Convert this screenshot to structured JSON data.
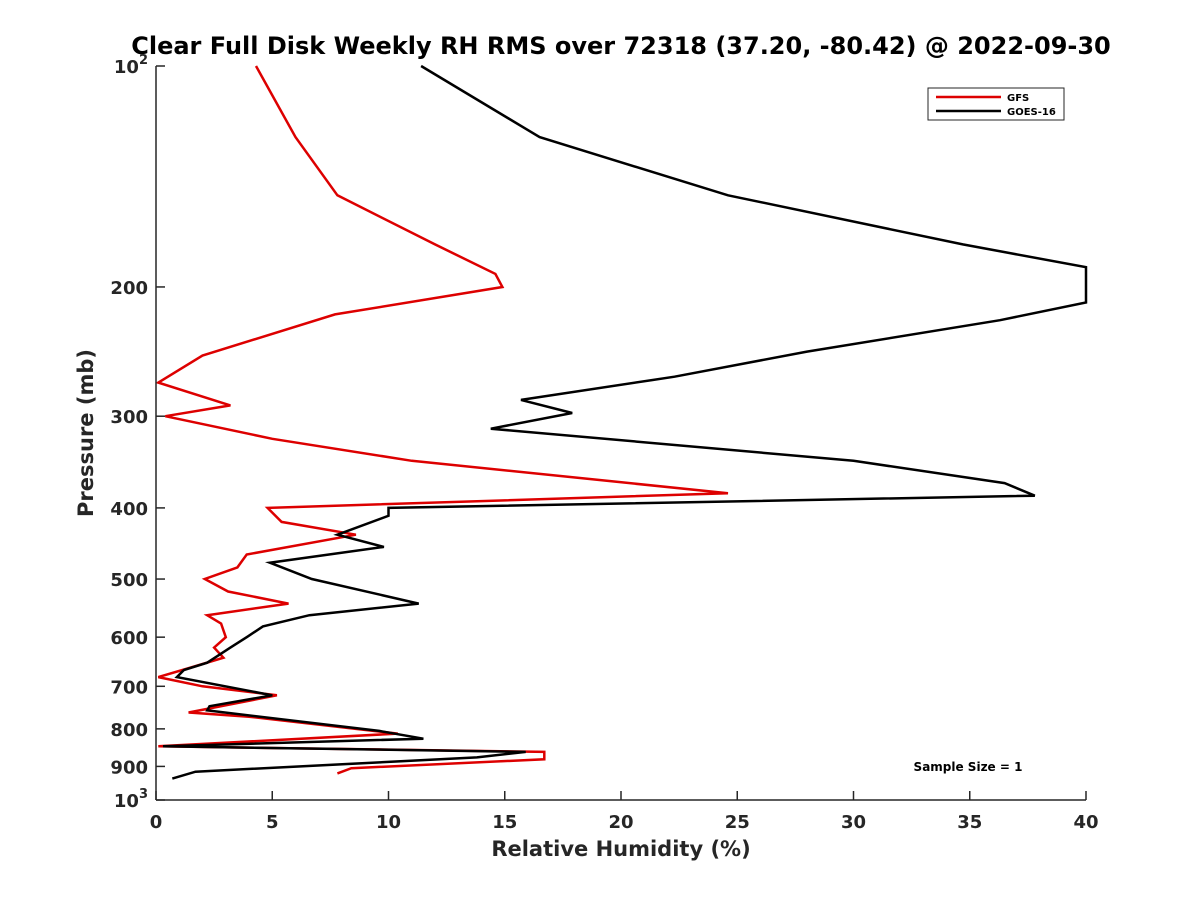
{
  "chart_data": {
    "type": "line",
    "title": "Clear Full Disk Weekly RH RMS over 72318 (37.20, -80.42) @ 2022-09-30",
    "xlabel": "Relative Humidity (%)",
    "ylabel": "Pressure (mb)",
    "xlim": [
      0,
      40
    ],
    "ylim": [
      100,
      1000
    ],
    "y_scale": "log",
    "y_reversed": true,
    "grid": false,
    "legend_position": "top-right",
    "x_ticks": [
      "0",
      "5",
      "10",
      "15",
      "20",
      "25",
      "30",
      "35",
      "40"
    ],
    "x_tick_values": [
      0,
      5,
      10,
      15,
      20,
      25,
      30,
      35,
      40
    ],
    "y_ticks": [
      {
        "value": 100,
        "base": "10",
        "exp": "2"
      },
      {
        "value": 200,
        "label": "200"
      },
      {
        "value": 300,
        "label": "300"
      },
      {
        "value": 400,
        "label": "400"
      },
      {
        "value": 500,
        "label": "500"
      },
      {
        "value": 600,
        "label": "600"
      },
      {
        "value": 700,
        "label": "700"
      },
      {
        "value": 800,
        "label": "800"
      },
      {
        "value": 900,
        "label": "900"
      },
      {
        "value": 1000,
        "base": "10",
        "exp": "3"
      }
    ],
    "annotation": "Sample Size = 1",
    "series": [
      {
        "name": "GFS",
        "color": "#dd0000",
        "points": [
          [
            4.3,
            100
          ],
          [
            6.0,
            125
          ],
          [
            7.8,
            150
          ],
          [
            12.0,
            175
          ],
          [
            14.6,
            192
          ],
          [
            14.9,
            200
          ],
          [
            7.7,
            218
          ],
          [
            2.0,
            248
          ],
          [
            0.1,
            270
          ],
          [
            3.2,
            290
          ],
          [
            0.4,
            300
          ],
          [
            5.0,
            322
          ],
          [
            11.0,
            345
          ],
          [
            19.6,
            368
          ],
          [
            24.6,
            382
          ],
          [
            4.8,
            400
          ],
          [
            5.4,
            418
          ],
          [
            8.6,
            435
          ],
          [
            3.9,
            463
          ],
          [
            3.5,
            482
          ],
          [
            2.1,
            500
          ],
          [
            3.1,
            520
          ],
          [
            5.7,
            540
          ],
          [
            2.2,
            560
          ],
          [
            2.8,
            575
          ],
          [
            3.0,
            600
          ],
          [
            2.5,
            620
          ],
          [
            2.9,
            640
          ],
          [
            1.5,
            660
          ],
          [
            0.1,
            680
          ],
          [
            2.0,
            700
          ],
          [
            5.2,
            720
          ],
          [
            1.4,
            760
          ],
          [
            4.0,
            770
          ],
          [
            10.4,
            812
          ],
          [
            0.1,
            845
          ],
          [
            16.7,
            860
          ],
          [
            16.7,
            880
          ],
          [
            8.4,
            905
          ],
          [
            7.8,
            920
          ]
        ]
      },
      {
        "name": "GOES-16",
        "color": "#000000",
        "points": [
          [
            11.4,
            100
          ],
          [
            16.5,
            125
          ],
          [
            24.6,
            150
          ],
          [
            34.7,
            175
          ],
          [
            40.0,
            188
          ],
          [
            40.0,
            210
          ],
          [
            36.3,
            222
          ],
          [
            28.0,
            245
          ],
          [
            22.3,
            265
          ],
          [
            15.7,
            285
          ],
          [
            17.9,
            297
          ],
          [
            14.4,
            312
          ],
          [
            30.0,
            345
          ],
          [
            36.5,
            370
          ],
          [
            37.8,
            385
          ],
          [
            10.0,
            400
          ],
          [
            10.0,
            410
          ],
          [
            7.8,
            435
          ],
          [
            9.8,
            452
          ],
          [
            4.9,
            475
          ],
          [
            6.7,
            500
          ],
          [
            11.3,
            540
          ],
          [
            6.6,
            560
          ],
          [
            4.6,
            580
          ],
          [
            3.9,
            600
          ],
          [
            3.2,
            620
          ],
          [
            2.2,
            650
          ],
          [
            1.2,
            665
          ],
          [
            0.9,
            680
          ],
          [
            5.0,
            720
          ],
          [
            2.3,
            745
          ],
          [
            2.2,
            755
          ],
          [
            9.6,
            805
          ],
          [
            11.5,
            825
          ],
          [
            0.3,
            845
          ],
          [
            15.9,
            860
          ],
          [
            13.8,
            875
          ],
          [
            1.7,
            915
          ],
          [
            0.7,
            935
          ]
        ]
      }
    ]
  }
}
